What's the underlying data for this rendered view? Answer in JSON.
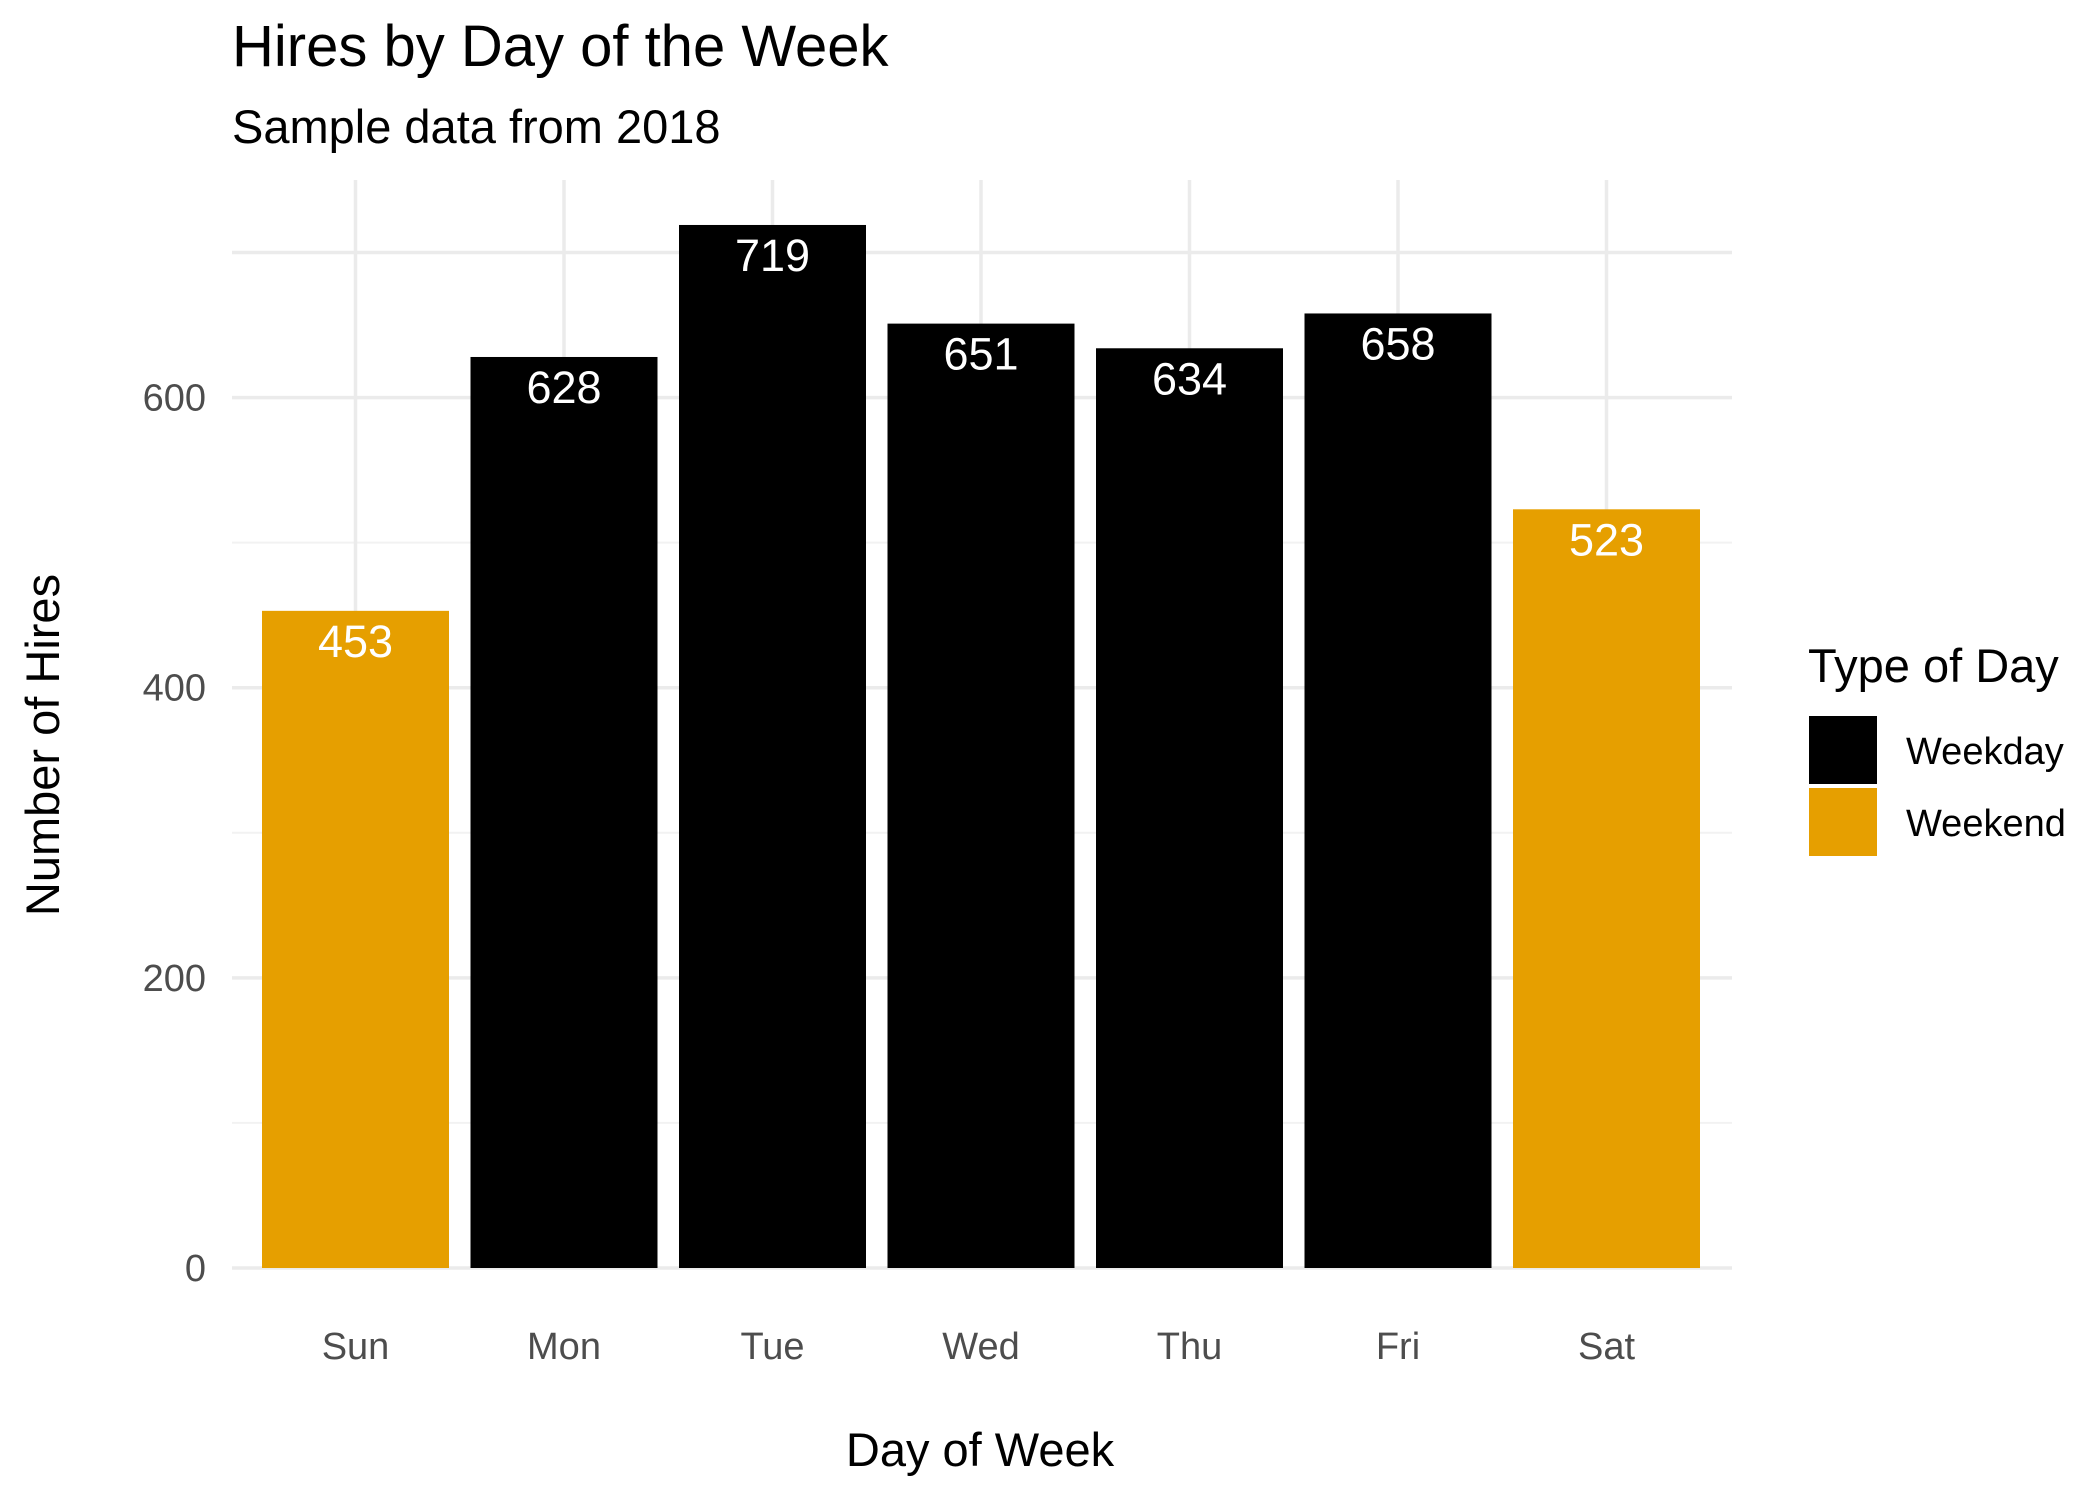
{
  "chart_data": {
    "type": "bar",
    "title": "Hires by Day of the Week",
    "subtitle": "Sample data from 2018",
    "xlabel": "Day of Week",
    "ylabel": "Number of Hires",
    "categories": [
      "Sun",
      "Mon",
      "Tue",
      "Wed",
      "Thu",
      "Fri",
      "Sat"
    ],
    "values": [
      453,
      628,
      719,
      651,
      634,
      658,
      523
    ],
    "groups": [
      "Weekend",
      "Weekday",
      "Weekday",
      "Weekday",
      "Weekday",
      "Weekday",
      "Weekend"
    ],
    "ylim": [
      0,
      750
    ],
    "yticks": [
      0,
      200,
      400,
      600
    ],
    "grid": true,
    "legend": {
      "title": "Type of Day",
      "position": "right",
      "entries": [
        {
          "label": "Weekday",
          "color": "#000000"
        },
        {
          "label": "Weekend",
          "color": "#E69F00"
        }
      ]
    },
    "colors": {
      "Weekday": "#000000",
      "Weekend": "#E69F00"
    }
  }
}
